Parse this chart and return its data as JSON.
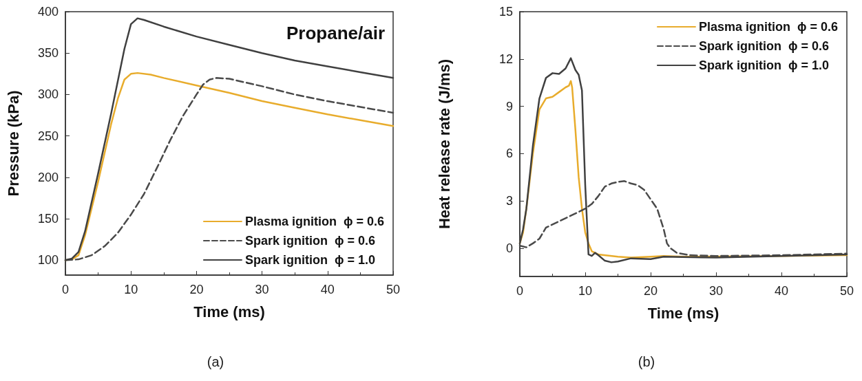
{
  "chart_data": [
    {
      "type": "line",
      "ylabel": "Pressure (kPa)",
      "xlabel": "Time (ms)",
      "annotations": [
        "Propane/air",
        "(a)"
      ],
      "xlim": [
        0,
        50
      ],
      "xticks": [
        0,
        10,
        20,
        30,
        40,
        50
      ],
      "ylim": [
        82,
        400
      ],
      "yticks": [
        100,
        150,
        200,
        250,
        300,
        350,
        400
      ],
      "legend": "bottom right",
      "marker": "none",
      "grid": false,
      "series": [
        {
          "name": "Plasma ignition  ϕ = 0.6",
          "color": "#e8ac2c",
          "line_style": "solid",
          "x": [
            0,
            1,
            2,
            3,
            5,
            7,
            8,
            9,
            10,
            11,
            13,
            15,
            20,
            25,
            30,
            35,
            40,
            45,
            50
          ],
          "values": [
            100,
            101,
            106,
            130,
            195,
            265,
            295,
            318,
            325,
            326,
            324,
            320,
            311,
            302,
            292,
            284,
            276,
            269,
            262
          ]
        },
        {
          "name": "Spark ignition  ϕ = 0.6",
          "color": "#4a4a4a",
          "line_style": "dashed",
          "x": [
            0,
            2,
            4,
            6,
            8,
            10,
            12,
            14,
            16,
            18,
            20,
            21,
            22,
            23,
            25,
            30,
            35,
            40,
            45,
            50
          ],
          "values": [
            100,
            101,
            106,
            117,
            133,
            155,
            180,
            212,
            245,
            275,
            300,
            312,
            318,
            320,
            319,
            310,
            300,
            292,
            285,
            278
          ]
        },
        {
          "name": "Spark ignition  ϕ = 1.0",
          "color": "#404040",
          "line_style": "solid",
          "x": [
            0,
            1,
            2,
            3,
            5,
            7,
            9,
            10,
            11,
            12,
            15,
            20,
            25,
            30,
            35,
            40,
            45,
            50
          ],
          "values": [
            100,
            102,
            110,
            135,
            205,
            278,
            355,
            385,
            392,
            390,
            382,
            370,
            360,
            350,
            341,
            334,
            327,
            320
          ]
        }
      ]
    },
    {
      "type": "line",
      "ylabel": "Heat release rate (J/ms)",
      "xlabel": "Time (ms)",
      "annotations": [
        "(b)"
      ],
      "xlim": [
        0,
        50
      ],
      "xticks": [
        0,
        10,
        20,
        30,
        40,
        50
      ],
      "ylim": [
        -1.8,
        15
      ],
      "yticks": [
        0,
        3,
        6,
        9,
        12,
        15
      ],
      "legend": "top right",
      "marker": "none",
      "grid": false,
      "series": [
        {
          "name": "Plasma ignition  ϕ = 0.6",
          "color": "#e8ac2c",
          "line_style": "solid",
          "x": [
            0,
            0.5,
            1,
            2,
            3,
            4,
            5,
            6,
            7,
            7.5,
            7.8,
            8,
            8.5,
            9,
            9.5,
            10,
            10.5,
            11,
            12,
            15,
            17,
            20,
            22,
            25,
            30,
            40,
            50
          ],
          "values": [
            0.3,
            1,
            2.5,
            6,
            8.8,
            9.5,
            9.6,
            9.9,
            10.2,
            10.3,
            10.6,
            10.2,
            7.5,
            4.5,
            2.5,
            1,
            0.3,
            -0.2,
            -0.4,
            -0.55,
            -0.6,
            -0.55,
            -0.5,
            -0.55,
            null,
            -0.5,
            -0.45
          ]
        },
        {
          "name": "Spark ignition  ϕ = 0.6",
          "color": "#4a4a4a",
          "line_style": "dashed",
          "x": [
            0,
            1,
            2,
            3,
            4,
            6,
            8,
            10,
            11,
            12,
            13,
            14,
            15,
            16,
            17,
            18,
            19,
            20,
            21,
            22,
            22.5,
            23,
            24,
            26,
            30,
            40,
            50
          ],
          "values": [
            0.15,
            0.05,
            0.3,
            0.6,
            1.3,
            1.7,
            2.1,
            2.5,
            2.8,
            3.3,
            3.9,
            4.1,
            4.2,
            4.25,
            4.1,
            4,
            3.7,
            3.1,
            2.5,
            1.2,
            0.3,
            0,
            -0.3,
            -0.45,
            -0.5,
            -0.45,
            -0.35
          ]
        },
        {
          "name": "Spark ignition  ϕ = 1.0",
          "color": "#404040",
          "line_style": "solid",
          "x": [
            0,
            0.5,
            1,
            2,
            3,
            4,
            5,
            6,
            7,
            7.8,
            8.5,
            9,
            9.5,
            10,
            10.5,
            11,
            11.5,
            12,
            13,
            14,
            15,
            17,
            20,
            22,
            30,
            40,
            50
          ],
          "values": [
            0.3,
            1.2,
            2.5,
            6.5,
            9.5,
            10.8,
            11.1,
            11.05,
            11.4,
            12.05,
            11.3,
            11,
            10,
            4,
            -0.4,
            -0.5,
            -0.3,
            -0.45,
            -0.8,
            -0.9,
            -0.85,
            -0.65,
            -0.7,
            -0.55,
            -0.6,
            -0.5,
            -0.4
          ]
        }
      ]
    }
  ]
}
